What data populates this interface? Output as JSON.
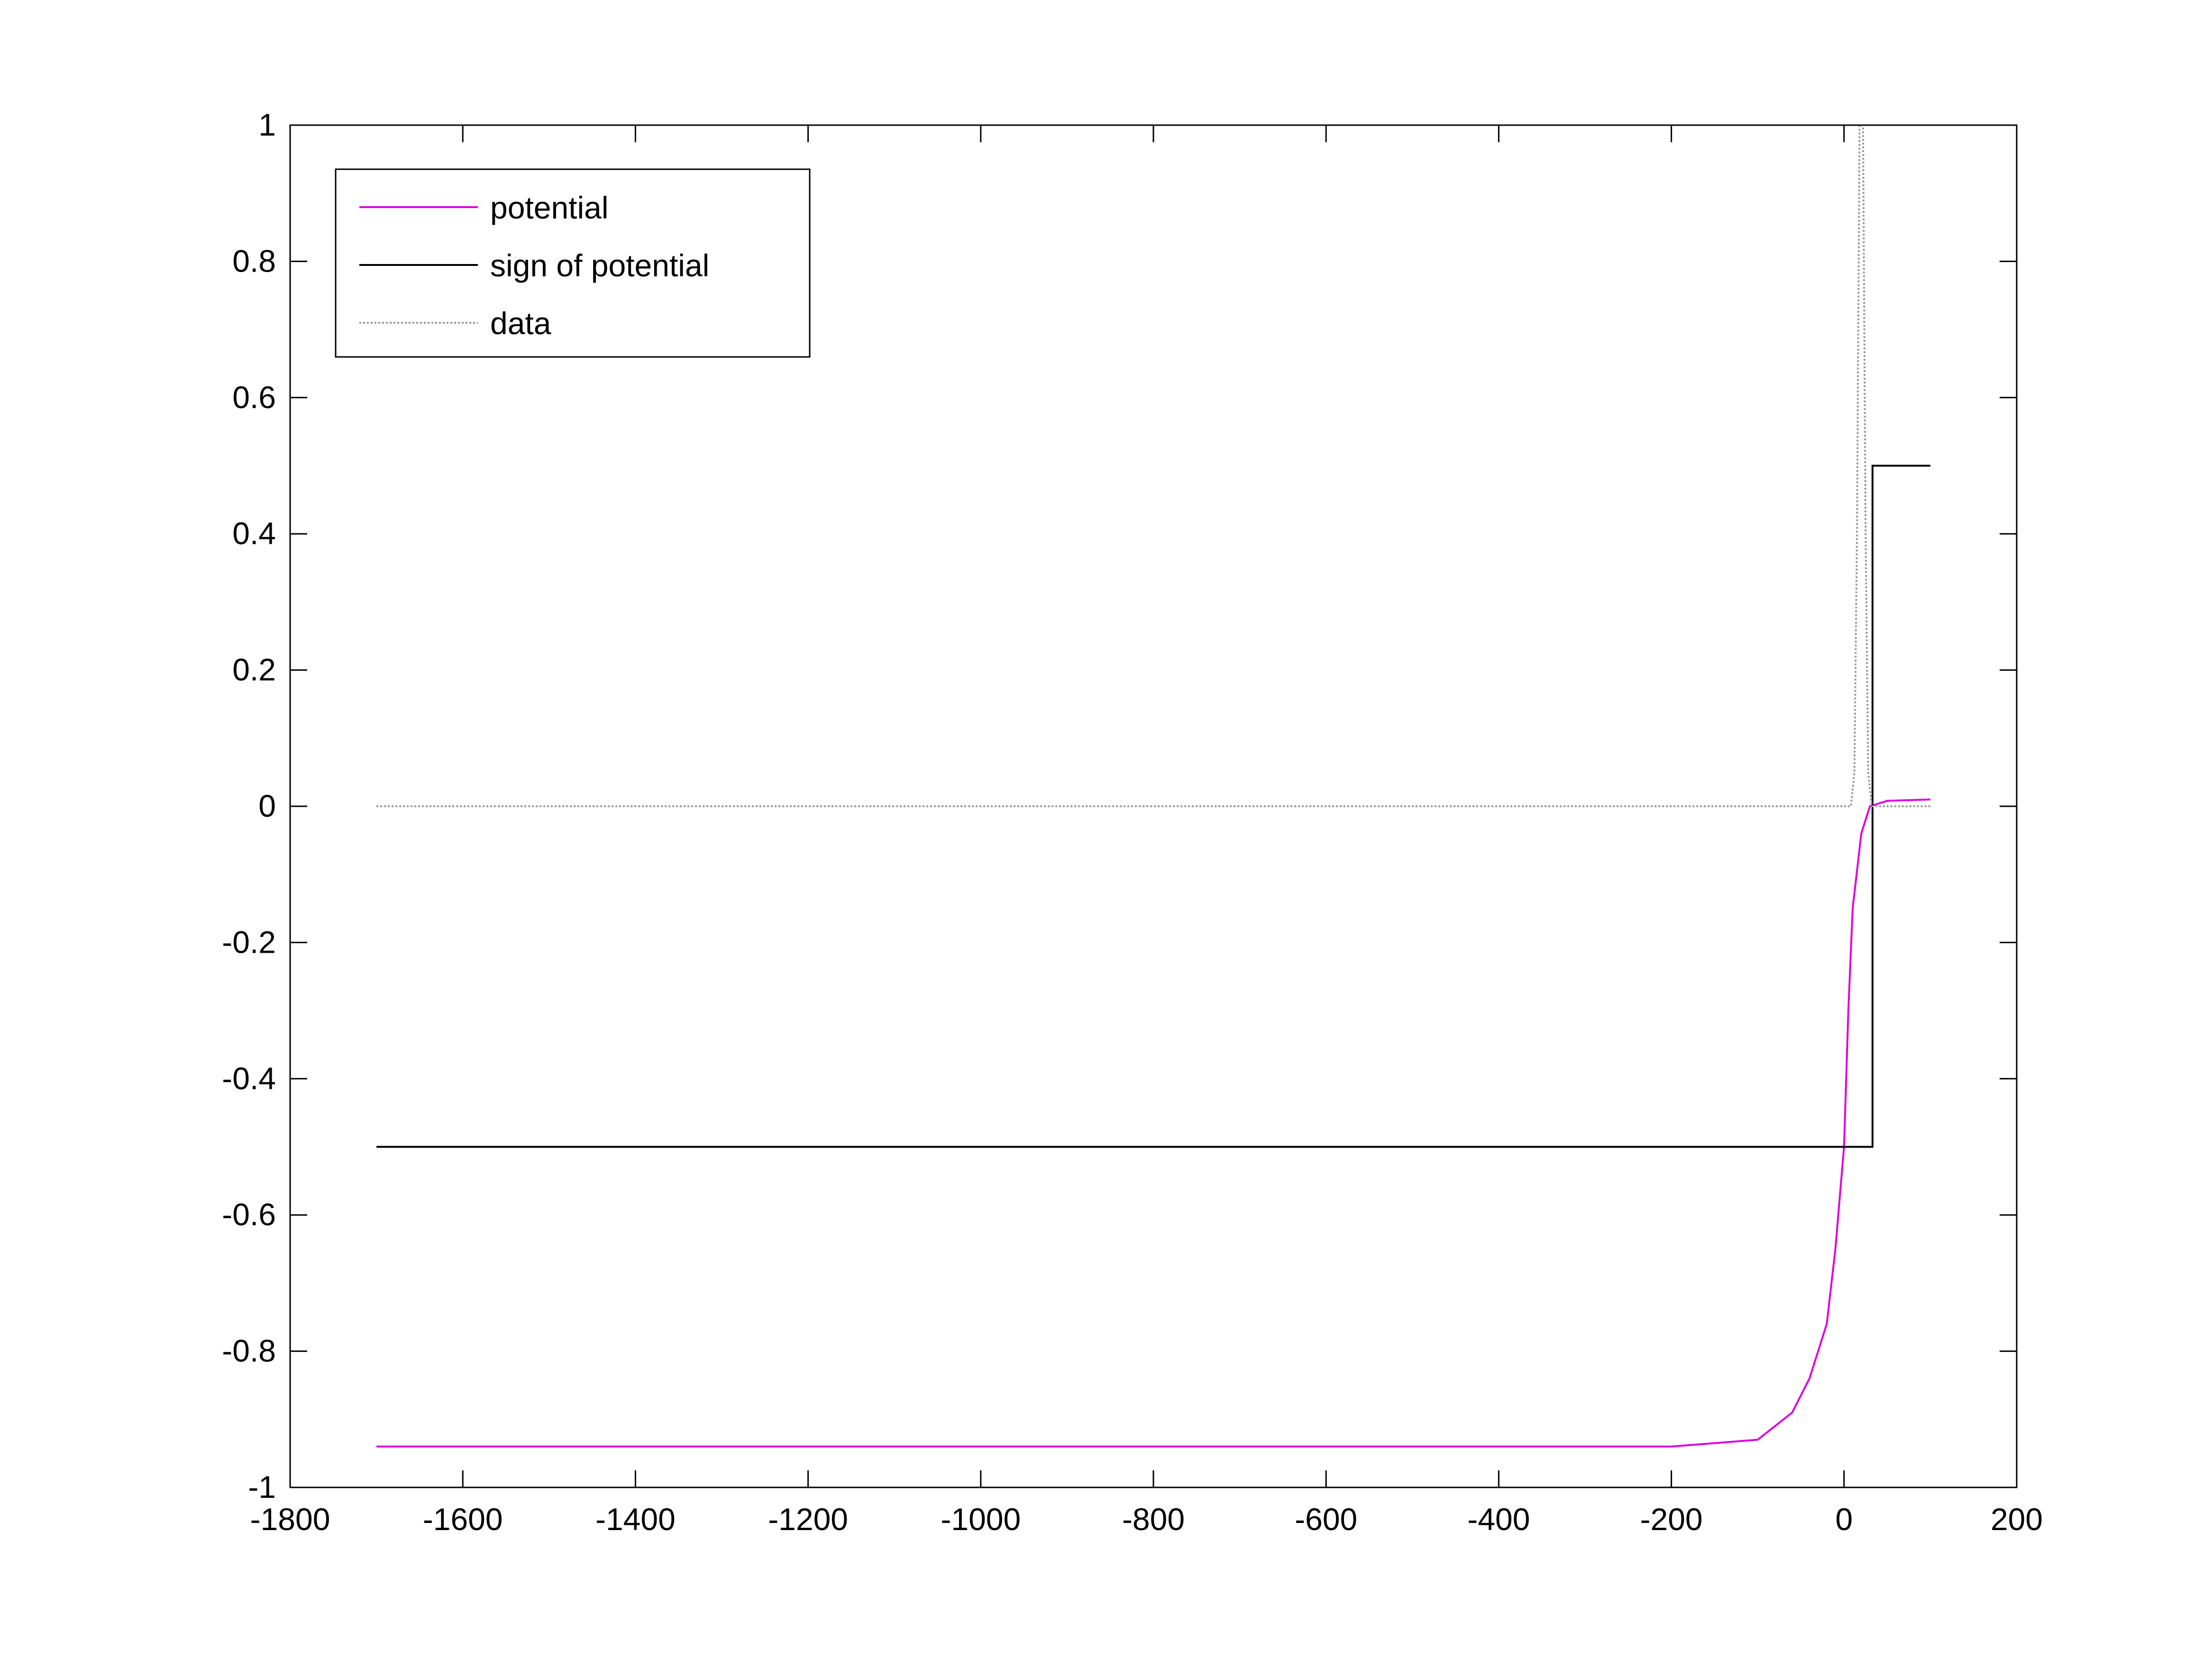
{
  "chart_data": {
    "type": "line",
    "xlim": [
      -1800,
      200
    ],
    "xticks": [
      -1800,
      -1600,
      -1400,
      -1200,
      -1000,
      -800,
      -600,
      -400,
      -200,
      0,
      200
    ],
    "ylim": [
      -1,
      1
    ],
    "yticks": [
      -1,
      -0.8,
      -0.6,
      -0.4,
      -0.2,
      0,
      0.2,
      0.4,
      0.6,
      0.8,
      1
    ],
    "legend": "upper left",
    "series": [
      {
        "name": "potential",
        "color": "#dd00dd",
        "linestyle": "solid",
        "x": [
          -1700,
          -1000,
          -500,
          -200,
          -150,
          -100,
          -60,
          -40,
          -20,
          -10,
          0,
          5,
          10,
          20,
          30,
          50,
          100
        ],
        "values": [
          -0.94,
          -0.94,
          -0.94,
          -0.94,
          -0.935,
          -0.93,
          -0.89,
          -0.84,
          -0.76,
          -0.65,
          -0.5,
          -0.3,
          -0.15,
          -0.04,
          0,
          0.008,
          0.01
        ]
      },
      {
        "name": "sign of potential",
        "color": "#000000",
        "linestyle": "solid",
        "x": [
          -1700,
          33,
          33,
          100
        ],
        "values": [
          -0.5,
          -0.5,
          0.5,
          0.5
        ]
      },
      {
        "name": "data",
        "color": "#999999",
        "linestyle": "dotted",
        "x": [
          -1700,
          8,
          12,
          15,
          18,
          22,
          25,
          28,
          32,
          100
        ],
        "values": [
          0,
          0,
          0.05,
          0.4,
          1,
          1,
          0.4,
          0.05,
          0,
          0
        ]
      }
    ]
  }
}
